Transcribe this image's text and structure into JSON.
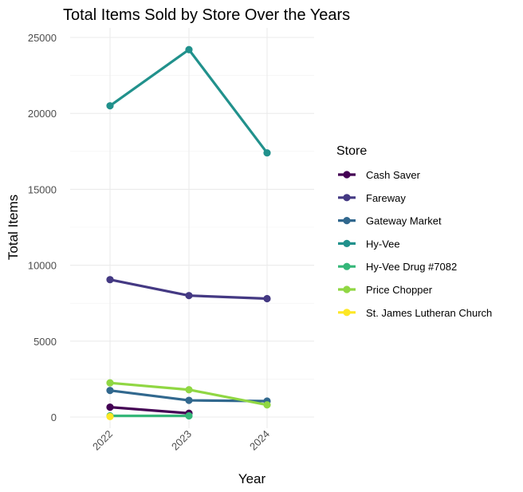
{
  "chart_data": {
    "type": "line",
    "title": "Total Items Sold by Store Over the Years",
    "xlabel": "Year",
    "ylabel": "Total Items",
    "x": [
      "2022",
      "2023",
      "2024"
    ],
    "ylim": [
      0,
      25000
    ],
    "yticks": [
      "0",
      "5000",
      "10000",
      "15000",
      "20000",
      "25000"
    ],
    "grid": true,
    "legend": {
      "title": "Store",
      "placement": "right"
    },
    "series": [
      {
        "name": "Cash Saver",
        "color": "#440154",
        "values": [
          650,
          250,
          null
        ]
      },
      {
        "name": "Fareway",
        "color": "#443983",
        "values": [
          9050,
          8000,
          7800
        ]
      },
      {
        "name": "Gateway Market",
        "color": "#31688e",
        "values": [
          1750,
          1100,
          1050
        ]
      },
      {
        "name": "Hy-Vee",
        "color": "#21918c",
        "values": [
          20500,
          24200,
          17400
        ]
      },
      {
        "name": "Hy-Vee Drug #7082",
        "color": "#35b779",
        "values": [
          80,
          80,
          null
        ]
      },
      {
        "name": "Price Chopper",
        "color": "#90d743",
        "values": [
          2250,
          1800,
          800
        ]
      },
      {
        "name": "St. James Lutheran Church",
        "color": "#fde725",
        "values": [
          30,
          null,
          null
        ]
      }
    ]
  }
}
